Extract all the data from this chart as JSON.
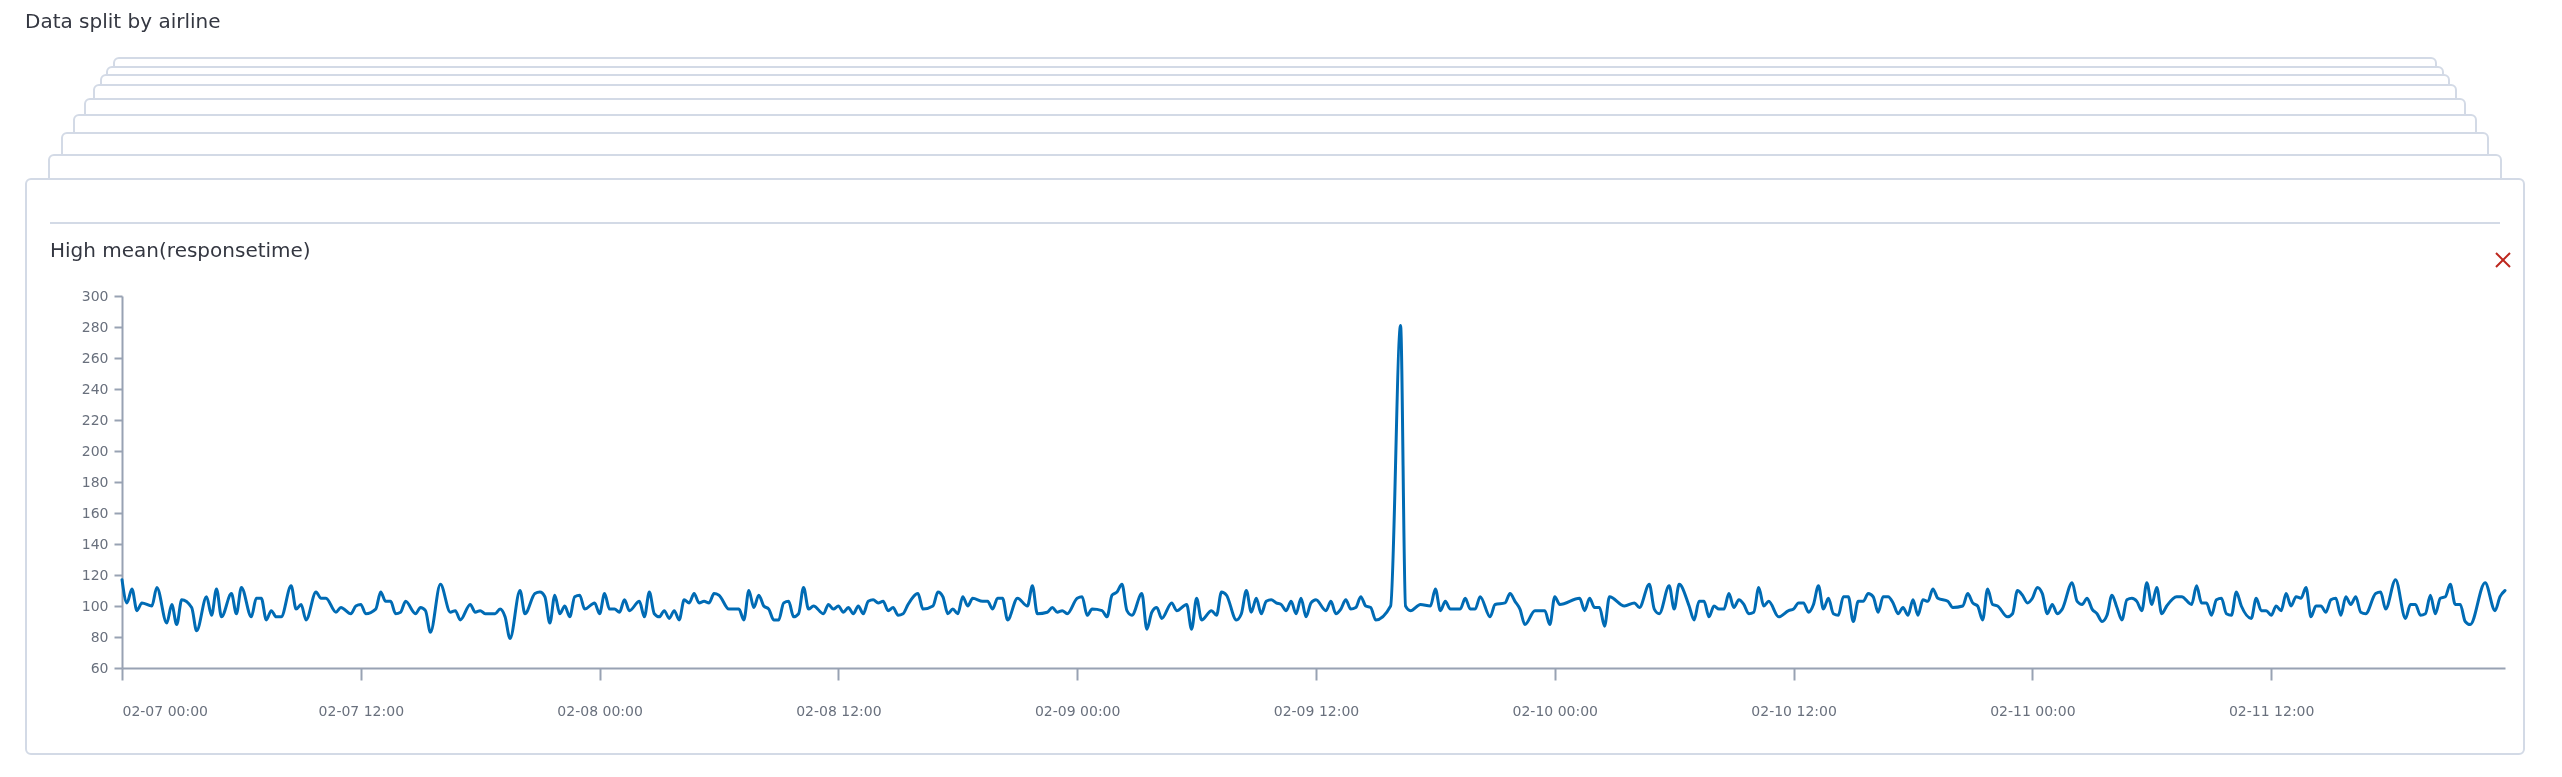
{
  "chart_data": {
    "type": "line",
    "title": "Data split by airline",
    "subtitle": "High mean(responsetime)",
    "x": [
      "--02-07T00:00",
      "--02-07T00:15",
      "--02-07T00:30",
      "--02-07T00:45",
      "--02-07T01:00",
      "--02-07T01:30",
      "--02-07T01:45",
      "--02-07T02:15",
      "--02-07T02:30",
      "--02-07T02:45",
      "--02-07T03:00",
      "--02-07T03:30",
      "--02-07T03:45",
      "--02-07T04:15",
      "--02-07T04:30",
      "--02-07T04:45",
      "--02-07T05:00",
      "--02-07T05:30",
      "--02-07T05:45",
      "--02-07T06:00",
      "--02-07T06:30",
      "--02-07T06:45",
      "--02-07T07:00",
      "--02-07T07:15",
      "--02-07T07:30",
      "--02-07T07:45",
      "--02-07T08:00",
      "--02-07T08:30",
      "--02-07T08:45",
      "--02-07T09:00",
      "--02-07T09:15",
      "--02-07T09:45",
      "--02-07T10:00",
      "--02-07T10:15",
      "--02-07T10:45",
      "--02-07T11:00",
      "--02-07T11:30",
      "--02-07T11:45",
      "--02-07T12:00",
      "--02-07T12:15",
      "--02-07T12:45",
      "--02-07T13:00",
      "--02-07T13:15",
      "--02-07T13:30",
      "--02-07T13:45",
      "--02-07T14:00",
      "--02-07T14:15",
      "--02-07T14:45",
      "--02-07T15:00",
      "--02-07T15:15",
      "--02-07T15:30",
      "--02-07T16:00",
      "--02-07T16:30",
      "--02-07T16:45",
      "--02-07T17:00",
      "--02-07T17:30",
      "--02-07T17:45",
      "--02-07T18:00",
      "--02-07T18:15",
      "--02-07T18:45",
      "--02-07T19:00",
      "--02-07T19:15",
      "--02-07T19:30",
      "--02-07T20:00",
      "--02-07T20:15",
      "--02-07T20:45",
      "--02-07T21:00",
      "--02-07T21:15",
      "--02-07T21:30",
      "--02-07T21:45",
      "--02-07T22:00",
      "--02-07T22:15",
      "--02-07T22:30",
      "--02-07T22:45",
      "--02-07T23:00",
      "--02-07T23:15",
      "--02-07T23:45",
      "--02-08T00:00",
      "--02-08T00:15",
      "--02-08T00:30",
      "--02-08T00:45",
      "--02-08T01:00",
      "--02-08T01:15",
      "--02-08T01:30",
      "--02-08T02:00",
      "--02-08T02:15",
      "--02-08T02:30",
      "--02-08T02:45",
      "--02-08T03:00",
      "--02-08T03:15",
      "--02-08T03:30",
      "--02-08T03:45",
      "--02-08T04:00",
      "--02-08T04:15",
      "--02-08T04:30",
      "--02-08T04:45",
      "--02-08T05:00",
      "--02-08T05:15",
      "--02-08T05:30",
      "--02-08T05:45",
      "--02-08T06:00",
      "--02-08T06:30",
      "--02-08T07:00",
      "--02-08T07:15",
      "--02-08T07:30",
      "--02-08T07:45",
      "--02-08T08:00",
      "--02-08T08:15",
      "--02-08T08:30",
      "--02-08T08:45",
      "--02-08T09:00",
      "--02-08T09:15",
      "--02-08T09:30",
      "--02-08T09:45",
      "--02-08T10:00",
      "--02-08T10:15",
      "--02-08T10:30",
      "--02-08T10:45",
      "--02-08T11:15",
      "--02-08T11:30",
      "--02-08T11:45",
      "--02-08T12:00",
      "--02-08T12:15",
      "--02-08T12:30",
      "--02-08T12:45",
      "--02-08T13:00",
      "--02-08T13:15",
      "--02-08T13:30",
      "--02-08T13:45",
      "--02-08T14:00",
      "--02-08T14:15",
      "--02-08T14:30",
      "--02-08T14:45",
      "--02-08T15:00",
      "--02-08T15:15",
      "--02-08T15:30",
      "--02-08T16:00",
      "--02-08T16:15",
      "--02-08T16:45",
      "--02-08T17:00",
      "--02-08T17:15",
      "--02-08T17:30",
      "--02-08T17:45",
      "--02-08T18:00",
      "--02-08T18:15",
      "--02-08T18:30",
      "--02-08T18:45",
      "--02-08T19:15",
      "--02-08T19:30",
      "--02-08T19:45",
      "--02-08T20:00",
      "--02-08T20:15",
      "--02-08T20:30",
      "--02-08T21:00",
      "--02-08T21:30",
      "--02-08T21:45",
      "--02-08T22:00",
      "--02-08T22:30",
      "--02-08T22:45",
      "--02-08T23:00",
      "--02-08T23:15",
      "--02-08T23:30",
      "--02-09T00:00",
      "--02-09T00:15",
      "--02-09T00:30",
      "--02-09T00:45",
      "--02-09T01:15",
      "--02-09T01:30",
      "--02-09T01:45",
      "--02-09T02:00",
      "--02-09T02:15",
      "--02-09T02:30",
      "--02-09T02:45",
      "--02-09T03:15",
      "--02-09T03:30",
      "--02-09T03:45",
      "--02-09T04:00",
      "--02-09T04:15",
      "--02-09T04:45",
      "--02-09T05:00",
      "--02-09T05:30",
      "--02-09T05:45",
      "--02-09T06:00",
      "--02-09T06:15",
      "--02-09T06:45",
      "--02-09T07:00",
      "--02-09T07:15",
      "--02-09T07:30",
      "--02-09T08:00",
      "--02-09T08:15",
      "--02-09T08:30",
      "--02-09T08:45",
      "--02-09T09:00",
      "--02-09T09:15",
      "--02-09T09:30",
      "--02-09T09:45",
      "--02-09T10:00",
      "--02-09T10:15",
      "--02-09T10:30",
      "--02-09T10:45",
      "--02-09T11:00",
      "--02-09T11:15",
      "--02-09T11:30",
      "--02-09T11:45",
      "--02-09T12:00",
      "--02-09T12:30",
      "--02-09T12:45",
      "--02-09T13:00",
      "--02-09T13:15",
      "--02-09T13:30",
      "--02-09T13:45",
      "--02-09T14:00",
      "--02-09T14:15",
      "--02-09T14:30",
      "--02-09T14:45",
      "--02-09T15:00",
      "--02-09T15:45",
      "--02-09T16:15",
      "--02-09T16:30",
      "--02-09T16:45",
      "--02-09T17:15",
      "--02-09T17:45",
      "--02-09T18:00",
      "--02-09T18:15",
      "--02-09T18:30",
      "--02-09T18:45",
      "--02-09T19:15",
      "--02-09T19:30",
      "--02-09T19:45",
      "--02-09T20:00",
      "--02-09T20:15",
      "--02-09T20:45",
      "--02-09T21:00",
      "--02-09T21:30",
      "--02-09T21:45",
      "--02-09T22:00",
      "--02-09T22:15",
      "--02-09T22:30",
      "--02-09T23:00",
      "--02-09T23:30",
      "--02-09T23:45",
      "--02-10T00:00",
      "--02-10T00:15",
      "--02-10T01:15",
      "--02-10T01:30",
      "--02-10T01:45",
      "--02-10T02:00",
      "--02-10T02:15",
      "--02-10T02:30",
      "--02-10T02:45",
      "--02-10T03:30",
      "--02-10T04:00",
      "--02-10T04:15",
      "--02-10T04:45",
      "--02-10T05:00",
      "--02-10T05:15",
      "--02-10T05:45",
      "--02-10T06:00",
      "--02-10T06:15",
      "--02-10T06:45",
      "--02-10T07:00",
      "--02-10T07:15",
      "--02-10T07:30",
      "--02-10T07:45",
      "--02-10T08:00",
      "--02-10T08:15",
      "--02-10T08:30",
      "--02-10T08:45",
      "--02-10T09:00",
      "--02-10T09:15",
      "--02-10T09:30",
      "--02-10T09:45",
      "--02-10T10:00",
      "--02-10T10:15",
      "--02-10T10:30",
      "--02-10T10:45",
      "--02-10T11:15",
      "--02-10T11:45",
      "--02-10T12:00",
      "--02-10T12:15",
      "--02-10T12:30",
      "--02-10T12:45",
      "--02-10T13:00",
      "--02-10T13:15",
      "--02-10T13:30",
      "--02-10T13:45",
      "--02-10T14:00",
      "--02-10T14:15",
      "--02-10T14:30",
      "--02-10T14:45",
      "--02-10T15:00",
      "--02-10T15:15",
      "--02-10T15:30",
      "--02-10T15:45",
      "--02-10T16:00",
      "--02-10T16:15",
      "--02-10T16:30",
      "--02-10T16:45",
      "--02-10T17:00",
      "--02-10T17:15",
      "--02-10T17:30",
      "--02-10T17:45",
      "--02-10T18:00",
      "--02-10T18:15",
      "--02-10T18:30",
      "--02-10T18:45",
      "--02-10T19:00",
      "--02-10T19:15",
      "--02-10T19:45",
      "--02-10T20:00",
      "--02-10T20:30",
      "--02-10T20:45",
      "--02-10T21:00",
      "--02-10T21:15",
      "--02-10T21:30",
      "--02-10T21:45",
      "--02-10T22:00",
      "--02-10T22:15",
      "--02-10T22:45",
      "--02-10T23:00",
      "--02-10T23:15",
      "--02-10T23:30",
      "--02-10T23:45",
      "--02-11T00:00",
      "--02-11T00:15",
      "--02-11T00:30",
      "--02-11T00:45",
      "--02-11T01:00",
      "--02-11T01:15",
      "--02-11T01:30",
      "--02-11T02:00",
      "--02-11T02:15",
      "--02-11T02:30",
      "--02-11T02:45",
      "--02-11T03:00",
      "--02-11T03:15",
      "--02-11T03:30",
      "--02-11T03:45",
      "--02-11T04:00",
      "--02-11T04:15",
      "--02-11T04:30",
      "--02-11T04:45",
      "--02-11T05:00",
      "--02-11T05:15",
      "--02-11T05:30",
      "--02-11T05:45",
      "--02-11T06:00",
      "--02-11T06:15",
      "--02-11T06:30",
      "--02-11T06:45",
      "--02-11T07:15",
      "--02-11T07:30",
      "--02-11T08:00",
      "--02-11T08:15",
      "--02-11T08:30",
      "--02-11T08:45",
      "--02-11T09:00",
      "--02-11T09:15",
      "--02-11T09:30",
      "--02-11T09:45",
      "--02-11T10:00",
      "--02-11T10:15",
      "--02-11T10:30",
      "--02-11T11:00",
      "--02-11T11:15",
      "--02-11T11:30",
      "--02-11T11:45",
      "--02-11T12:00",
      "--02-11T12:15",
      "--02-11T12:30",
      "--02-11T12:45",
      "--02-11T13:00",
      "--02-11T13:15",
      "--02-11T13:30",
      "--02-11T13:45",
      "--02-11T14:00",
      "--02-11T14:15",
      "--02-11T14:30",
      "--02-11T14:45",
      "--02-11T15:00",
      "--02-11T15:15",
      "--02-11T15:30",
      "--02-11T15:45",
      "--02-11T16:00",
      "--02-11T16:15",
      "--02-11T16:30",
      "--02-11T16:45",
      "--02-11T17:15",
      "--02-11T17:30",
      "--02-11T17:45",
      "--02-11T18:15",
      "--02-11T18:45",
      "--02-11T19:00",
      "--02-11T19:15",
      "--02-11T19:30",
      "--02-11T19:45",
      "--02-11T20:00",
      "--02-11T20:15",
      "--02-11T20:30",
      "--02-11T20:45",
      "--02-11T21:00",
      "--02-11T21:15",
      "--02-11T21:30",
      "--02-11T21:45",
      "--02-11T22:00",
      "--02-11T22:45",
      "--02-11T23:15",
      "--02-11T23:30",
      "--02-11T23:45"
    ],
    "series": [
      {
        "color": "#006bb4",
        "values": [
          117,
          102,
          111,
          97,
          102,
          100,
          112,
          89,
          101,
          88,
          104,
          99,
          84,
          106,
          94,
          111,
          93,
          108,
          95,
          112,
          93,
          105,
          105,
          91,
          97,
          93,
          93,
          113,
          98,
          101,
          91,
          109,
          105,
          105,
          96,
          99,
          95,
          100,
          101,
          95,
          98,
          109,
          103,
          103,
          95,
          96,
          103,
          95,
          99,
          97,
          83,
          114,
          96,
          97,
          91,
          101,
          96,
          97,
          95,
          95,
          98,
          93,
          79,
          110,
          95,
          108,
          109,
          106,
          89,
          107,
          95,
          100,
          93,
          106,
          107,
          98,
          102,
          95,
          108,
          98,
          98,
          96,
          104,
          97,
          103,
          93,
          109,
          95,
          93,
          97,
          92,
          97,
          91,
          104,
          102,
          108,
          102,
          103,
          102,
          108,
          107,
          98,
          98,
          91,
          110,
          99,
          107,
          100,
          98,
          91,
          91,
          102,
          103,
          93,
          95,
          112,
          98,
          100,
          95,
          101,
          98,
          100,
          96,
          99,
          95,
          100,
          95,
          103,
          104,
          102,
          103,
          97,
          99,
          94,
          95,
          101,
          108,
          98,
          100,
          109,
          106,
          95,
          98,
          95,
          106,
          100,
          105,
          103,
          103,
          98,
          105,
          105,
          91,
          105,
          100,
          113,
          95,
          96,
          99,
          96,
          97,
          95,
          105,
          106,
          94,
          98,
          97,
          93,
          107,
          109,
          114,
          97,
          94,
          108,
          85,
          96,
          99,
          92,
          102,
          97,
          101,
          85,
          105,
          91,
          97,
          94,
          109,
          107,
          91,
          95,
          110,
          96,
          105,
          95,
          103,
          104,
          102,
          101,
          97,
          103,
          95,
          105,
          93,
          102,
          104,
          97,
          103,
          95,
          98,
          104,
          98,
          99,
          106,
          100,
          99,
          91,
          100,
          281,
          100,
          97,
          101,
          100,
          111,
          97,
          103,
          98,
          98,
          105,
          98,
          98,
          106,
          93,
          101,
          102,
          108,
          103,
          98,
          88,
          97,
          97,
          88,
          106,
          101,
          105,
          97,
          105,
          99,
          99,
          87,
          106,
          100,
          102,
          99,
          114,
          98,
          95,
          113,
          98,
          114,
          100,
          91,
          103,
          103,
          93,
          100,
          98,
          98,
          108,
          99,
          104,
          101,
          95,
          96,
          112,
          100,
          103,
          93,
          97,
          98,
          102,
          102,
          96,
          101,
          113,
          98,
          105,
          95,
          94,
          106,
          106,
          90,
          103,
          103,
          108,
          106,
          96,
          106,
          106,
          102,
          95,
          99,
          94,
          104,
          94,
          104,
          103,
          111,
          105,
          103,
          99,
          100,
          108,
          102,
          100,
          91,
          111,
          101,
          100,
          93,
          95,
          110,
          107,
          102,
          105,
          112,
          108,
          95,
          101,
          95,
          98,
          115,
          103,
          101,
          105,
          98,
          95,
          90,
          94,
          107,
          99,
          91,
          104,
          105,
          103,
          97,
          115,
          101,
          112,
          95,
          100,
          106,
          106,
          101,
          113,
          102,
          102,
          94,
          104,
          105,
          95,
          94,
          109,
          100,
          92,
          105,
          97,
          97,
          94,
          100,
          97,
          108,
          100,
          106,
          105,
          112,
          93,
          100,
          100,
          96,
          104,
          105,
          94,
          106,
          101,
          106,
          96,
          95,
          108,
          109,
          98,
          117,
          92,
          101,
          101,
          94,
          95,
          107,
          95,
          105,
          106,
          114,
          101,
          101,
          90,
          88,
          115,
          97,
          106,
          110
        ]
      }
    ],
    "xlim": [
      "--02-07T00:00",
      "--02-11T23:45"
    ],
    "xticks": [
      {
        "value": "--02-07T00:00",
        "label": "02-07 00:00"
      },
      {
        "value": "--02-07T12:00",
        "label": "02-07 12:00"
      },
      {
        "value": "--02-08T00:00",
        "label": "02-08 00:00"
      },
      {
        "value": "--02-08T12:00",
        "label": "02-08 12:00"
      },
      {
        "value": "--02-09T00:00",
        "label": "02-09 00:00"
      },
      {
        "value": "--02-09T12:00",
        "label": "02-09 12:00"
      },
      {
        "value": "--02-10T00:00",
        "label": "02-10 00:00"
      },
      {
        "value": "--02-10T12:00",
        "label": "02-10 12:00"
      },
      {
        "value": "--02-11T00:00",
        "label": "02-11 00:00"
      },
      {
        "value": "--02-11T12:00",
        "label": "02-11 12:00"
      }
    ],
    "ylim": [
      60,
      300
    ],
    "yticks": [
      60,
      80,
      100,
      120,
      140,
      160,
      180,
      200,
      220,
      240,
      260,
      280,
      300
    ]
  }
}
